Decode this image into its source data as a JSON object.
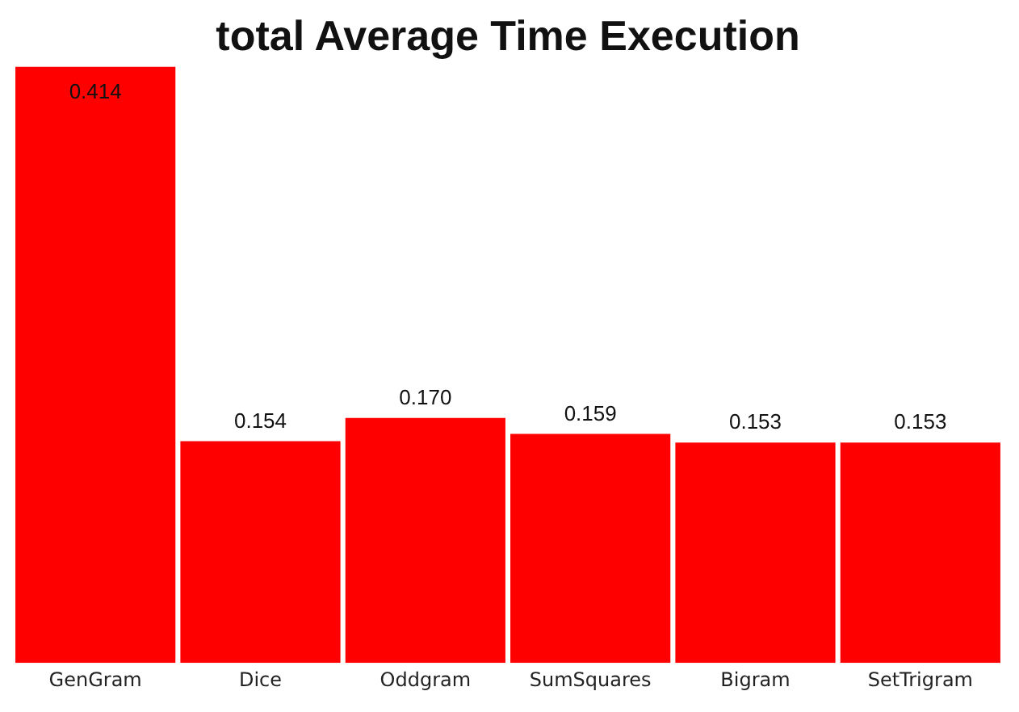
{
  "chart_data": {
    "type": "bar",
    "title": "total Average Time Execution",
    "categories": [
      "GenGram",
      "Dice",
      "Oddgram",
      "SumSquares",
      "Bigram",
      "SetTrigram"
    ],
    "values": [
      0.414,
      0.154,
      0.17,
      0.159,
      0.153,
      0.153
    ],
    "color": "#ff0000",
    "value_labels": [
      "0.414",
      "0.154",
      "0.170",
      "0.159",
      "0.153",
      "0.153"
    ],
    "grid": false,
    "legend": false
  }
}
